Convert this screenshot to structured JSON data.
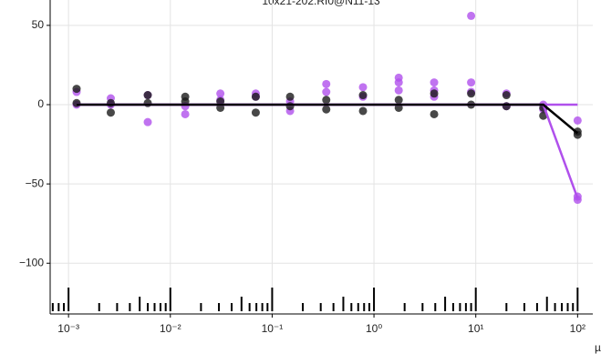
{
  "chart_data": {
    "type": "scatter",
    "title": "10x21-202.RI0@N11-13",
    "x_label": "µ",
    "xscale": "log",
    "grid": true,
    "xlim": [
      0.00066,
      141
    ],
    "ylim": [
      -132,
      66
    ],
    "xticks": [
      {
        "value": 0.001,
        "label": "10⁻³"
      },
      {
        "value": 0.01,
        "label": "10⁻²"
      },
      {
        "value": 0.1,
        "label": "10⁻¹"
      },
      {
        "value": 1,
        "label": "10⁰"
      },
      {
        "value": 10,
        "label": "10¹"
      },
      {
        "value": 100,
        "label": "10²"
      }
    ],
    "yticks": [
      50,
      0,
      {
        "value": -50,
        "label": "−50"
      },
      {
        "value": -100,
        "label": "−100"
      }
    ],
    "series": [
      {
        "color": "#b050ec",
        "x": [
          0.0012,
          0.0012,
          0.0026,
          0.0026,
          0.006,
          0.006,
          0.014,
          0.014,
          0.031,
          0.031,
          0.069,
          0.069,
          0.15,
          0.15,
          0.34,
          0.34,
          0.78,
          0.78,
          1.75,
          1.75,
          1.75,
          3.9,
          3.9,
          3.9,
          9,
          9,
          9,
          20,
          20,
          46,
          46,
          100,
          100,
          100
        ],
        "values": [
          8,
          0,
          4,
          0,
          -11,
          6,
          -6,
          -1,
          7,
          3,
          7,
          5,
          -4,
          2,
          13,
          8,
          11,
          5,
          17,
          14,
          9,
          14,
          9,
          5,
          56,
          14,
          8,
          7,
          -1,
          0,
          -3,
          -10,
          -58,
          -60
        ]
      },
      {
        "color": "#1a1a1a",
        "x": [
          0.0012,
          0.0012,
          0.0026,
          0.0026,
          0.006,
          0.006,
          0.014,
          0.014,
          0.031,
          0.031,
          0.069,
          0.069,
          0.15,
          0.15,
          0.34,
          0.34,
          0.78,
          0.78,
          1.75,
          1.75,
          3.9,
          3.9,
          9,
          9,
          20,
          20,
          46,
          46,
          100,
          100
        ],
        "values": [
          10,
          1,
          1,
          -5,
          6,
          1,
          5,
          2,
          2,
          -2,
          5,
          -5,
          5,
          -1,
          3,
          -3,
          6,
          -4,
          3,
          -2,
          7,
          -6,
          7,
          0,
          6,
          -1,
          -2,
          -7,
          -17,
          -19
        ]
      }
    ],
    "fits": [
      {
        "color": "#b050ec",
        "x": [
          0.0012,
          100
        ],
        "values": [
          0,
          0
        ]
      },
      {
        "color": "#b050ec",
        "x": [
          0.0012,
          46,
          100
        ],
        "values": [
          0,
          0,
          -59
        ]
      },
      {
        "color": "#000000",
        "x": [
          0.0012,
          46,
          100
        ],
        "values": [
          0,
          0,
          -18
        ]
      }
    ]
  }
}
